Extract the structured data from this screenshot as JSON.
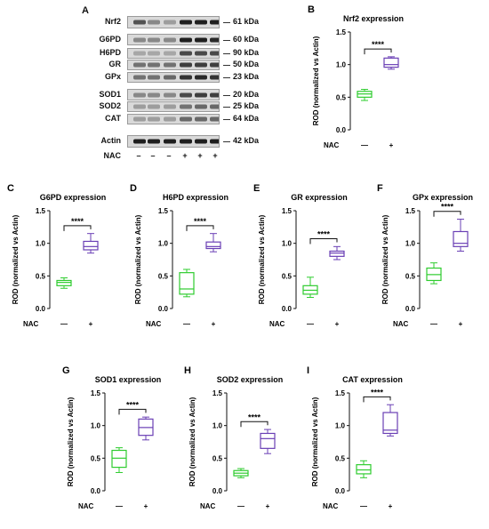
{
  "blot": {
    "letter": "A",
    "rows": [
      {
        "protein": "Nrf2",
        "kda": "61 kDa",
        "intensities": [
          0.7,
          0.45,
          0.35,
          0.95,
          0.95,
          0.95
        ]
      },
      {
        "protein": "G6PD",
        "kda": "60 kDa",
        "intensities": [
          0.45,
          0.45,
          0.45,
          0.95,
          0.95,
          0.9
        ]
      },
      {
        "protein": "H6PD",
        "kda": "90 kDa",
        "intensities": [
          0.3,
          0.3,
          0.3,
          0.75,
          0.75,
          0.75
        ]
      },
      {
        "protein": "GR",
        "kda": "50 kDa",
        "intensities": [
          0.55,
          0.55,
          0.55,
          0.8,
          0.8,
          0.8
        ]
      },
      {
        "protein": "GPx",
        "kda": "23 kDa",
        "intensities": [
          0.55,
          0.55,
          0.6,
          0.85,
          0.9,
          0.85
        ]
      },
      {
        "protein": "SOD1",
        "kda": "20 kDa",
        "intensities": [
          0.45,
          0.45,
          0.45,
          0.75,
          0.8,
          0.8
        ]
      },
      {
        "protein": "SOD2",
        "kda": "25 kDa",
        "intensities": [
          0.35,
          0.35,
          0.35,
          0.55,
          0.6,
          0.6
        ]
      },
      {
        "protein": "CAT",
        "kda": "64 kDa",
        "intensities": [
          0.35,
          0.35,
          0.35,
          0.6,
          0.6,
          0.6
        ]
      },
      {
        "protein": "Actin",
        "kda": "42 kDa",
        "intensities": [
          0.95,
          0.95,
          0.95,
          0.95,
          0.95,
          0.95
        ]
      }
    ],
    "nac_label": "NAC",
    "nac_signs": [
      "–",
      "–",
      "–",
      "+",
      "+",
      "+"
    ]
  },
  "chart_data": [
    {
      "letter": "B",
      "title": "Nrf2 expression",
      "type": "box",
      "ylabel": "ROD (normalized vs Actin)",
      "ylim": [
        0,
        1.5
      ],
      "yticks": [
        "0.0",
        "0.5",
        "1.0",
        "1.5"
      ],
      "x_label": "NAC",
      "categories": [
        "—",
        "+"
      ],
      "significance": "****",
      "boxes": [
        {
          "min": 0.45,
          "q1": 0.5,
          "median": 0.55,
          "q3": 0.59,
          "max": 0.62
        },
        {
          "min": 0.93,
          "q1": 0.96,
          "median": 1.0,
          "q3": 1.1,
          "max": 1.12
        }
      ],
      "colors": [
        "#2ecc2e",
        "#6a3fb5"
      ]
    },
    {
      "letter": "C",
      "title": "G6PD expression",
      "type": "box",
      "ylabel": "ROD (normalized vs Actin)",
      "ylim": [
        0,
        1.5
      ],
      "yticks": [
        "0.0",
        "0.5",
        "1.0",
        "1.5"
      ],
      "x_label": "NAC",
      "categories": [
        "—",
        "+"
      ],
      "significance": "****",
      "boxes": [
        {
          "min": 0.31,
          "q1": 0.35,
          "median": 0.4,
          "q3": 0.43,
          "max": 0.47
        },
        {
          "min": 0.85,
          "q1": 0.9,
          "median": 0.95,
          "q3": 1.03,
          "max": 1.15
        }
      ],
      "colors": [
        "#2ecc2e",
        "#6a3fb5"
      ]
    },
    {
      "letter": "D",
      "title": "H6PD expression",
      "type": "box",
      "ylabel": "ROD (normalized vs Actin)",
      "ylim": [
        0,
        1.5
      ],
      "yticks": [
        "0.0",
        "0.5",
        "1.0",
        "1.5"
      ],
      "x_label": "NAC",
      "categories": [
        "—",
        "+"
      ],
      "significance": "****",
      "boxes": [
        {
          "min": 0.18,
          "q1": 0.22,
          "median": 0.3,
          "q3": 0.55,
          "max": 0.6
        },
        {
          "min": 0.87,
          "q1": 0.92,
          "median": 0.95,
          "q3": 1.02,
          "max": 1.15
        }
      ],
      "colors": [
        "#2ecc2e",
        "#6a3fb5"
      ]
    },
    {
      "letter": "E",
      "title": "GR expression",
      "type": "box",
      "ylabel": "ROD (normalized vs Actin)",
      "ylim": [
        0,
        1.5
      ],
      "yticks": [
        "0.0",
        "0.5",
        "1.0",
        "1.5"
      ],
      "x_label": "NAC",
      "categories": [
        "—",
        "+"
      ],
      "significance": "****",
      "boxes": [
        {
          "min": 0.17,
          "q1": 0.22,
          "median": 0.28,
          "q3": 0.35,
          "max": 0.48
        },
        {
          "min": 0.75,
          "q1": 0.8,
          "median": 0.85,
          "q3": 0.88,
          "max": 0.95
        }
      ],
      "colors": [
        "#2ecc2e",
        "#6a3fb5"
      ]
    },
    {
      "letter": "F",
      "title": "GPx expression",
      "type": "box",
      "ylabel": "ROD (normalized vs Actin)",
      "ylim": [
        0,
        1.5
      ],
      "yticks": [
        "0.0",
        "0.5",
        "1.0",
        "1.5"
      ],
      "x_label": "NAC",
      "categories": [
        "—",
        "+"
      ],
      "significance": "****",
      "boxes": [
        {
          "min": 0.38,
          "q1": 0.43,
          "median": 0.52,
          "q3": 0.62,
          "max": 0.7
        },
        {
          "min": 0.88,
          "q1": 0.95,
          "median": 1.0,
          "q3": 1.18,
          "max": 1.37
        }
      ],
      "colors": [
        "#2ecc2e",
        "#6a3fb5"
      ]
    },
    {
      "letter": "G",
      "title": "SOD1 expression",
      "type": "box",
      "ylabel": "ROD (normalized vs Actin)",
      "ylim": [
        0,
        1.5
      ],
      "yticks": [
        "0.0",
        "0.5",
        "1.0",
        "1.5"
      ],
      "x_label": "NAC",
      "categories": [
        "—",
        "+"
      ],
      "significance": "****",
      "boxes": [
        {
          "min": 0.28,
          "q1": 0.36,
          "median": 0.5,
          "q3": 0.62,
          "max": 0.66
        },
        {
          "min": 0.78,
          "q1": 0.85,
          "median": 0.97,
          "q3": 1.1,
          "max": 1.13
        }
      ],
      "colors": [
        "#2ecc2e",
        "#6a3fb5"
      ]
    },
    {
      "letter": "H",
      "title": "SOD2 expression",
      "type": "box",
      "ylabel": "ROD (normalized vs Actin)",
      "ylim": [
        0,
        1.5
      ],
      "yticks": [
        "0.0",
        "0.5",
        "1.0",
        "1.5"
      ],
      "x_label": "NAC",
      "categories": [
        "—",
        "+"
      ],
      "significance": "****",
      "boxes": [
        {
          "min": 0.2,
          "q1": 0.23,
          "median": 0.27,
          "q3": 0.31,
          "max": 0.34
        },
        {
          "min": 0.57,
          "q1": 0.65,
          "median": 0.8,
          "q3": 0.88,
          "max": 0.94
        }
      ],
      "colors": [
        "#2ecc2e",
        "#6a3fb5"
      ]
    },
    {
      "letter": "I",
      "title": "CAT expression",
      "type": "box",
      "ylabel": "ROD (normalized vs Actin)",
      "ylim": [
        0,
        1.5
      ],
      "yticks": [
        "0.0",
        "0.5",
        "1.0",
        "1.5"
      ],
      "x_label": "NAC",
      "categories": [
        "—",
        "+"
      ],
      "significance": "****",
      "boxes": [
        {
          "min": 0.2,
          "q1": 0.26,
          "median": 0.32,
          "q3": 0.4,
          "max": 0.46
        },
        {
          "min": 0.84,
          "q1": 0.88,
          "median": 0.93,
          "q3": 1.2,
          "max": 1.32
        }
      ],
      "colors": [
        "#2ecc2e",
        "#6a3fb5"
      ]
    }
  ]
}
